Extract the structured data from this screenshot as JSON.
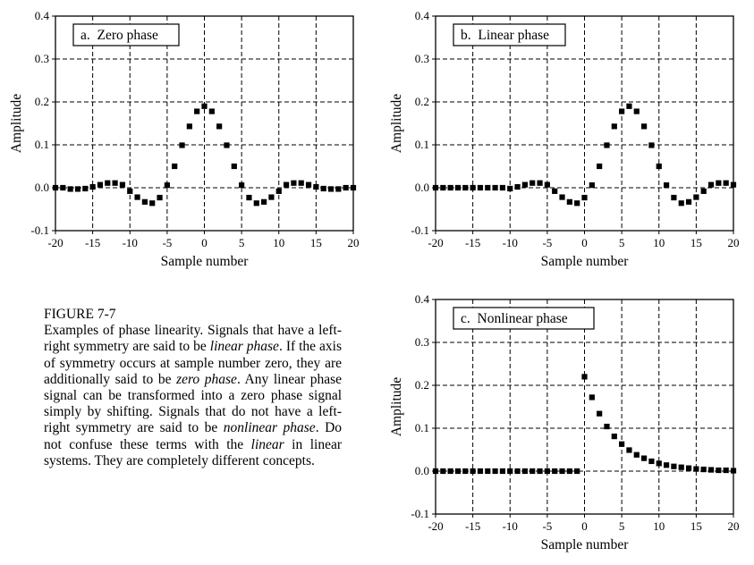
{
  "figure": {
    "label": "FIGURE 7-7",
    "caption": [
      {
        "t": "Examples of phase linearity.  Signals that have a left-right symmetry are said to be "
      },
      {
        "t": "linear phase",
        "i": true
      },
      {
        "t": ".  If the axis of symmetry occurs at sample number zero, they are additionally said to be "
      },
      {
        "t": "zero phase",
        "i": true
      },
      {
        "t": ".  Any linear phase signal can be transformed into a zero phase signal simply by shifting.  Signals that do not have a left-right symmetry are said to be "
      },
      {
        "t": "nonlinear phase",
        "i": true
      },
      {
        "t": ".  Do not confuse these terms with the "
      },
      {
        "t": "linear",
        "i": true
      },
      {
        "t": " in linear systems.  They are completely different concepts."
      }
    ]
  },
  "chart_data": [
    {
      "type": "scatter",
      "title": "a.  Zero phase",
      "xlabel": "Sample number",
      "ylabel": "Amplitude",
      "xlim": [
        -20,
        20
      ],
      "ylim": [
        -0.1,
        0.4
      ],
      "xticks": [
        -20,
        -15,
        -10,
        -5,
        0,
        5,
        10,
        15,
        20
      ],
      "yticks": [
        -0.1,
        0.0,
        0.1,
        0.2,
        0.3,
        0.4
      ],
      "ytick_labels": [
        "-0.1",
        "0.0",
        "0.1",
        "0.2",
        "0.3",
        "0.4"
      ],
      "grid": true,
      "marker": "square",
      "x": [
        -20,
        -19,
        -18,
        -17,
        -16,
        -15,
        -14,
        -13,
        -12,
        -11,
        -10,
        -9,
        -8,
        -7,
        -6,
        -5,
        -4,
        -3,
        -2,
        -1,
        0,
        1,
        2,
        3,
        4,
        5,
        6,
        7,
        8,
        9,
        10,
        11,
        12,
        13,
        14,
        15,
        16,
        17,
        18,
        19,
        20
      ],
      "y": [
        0.0,
        0.0,
        -0.003,
        -0.003,
        -0.002,
        0.002,
        0.007,
        0.011,
        0.011,
        0.007,
        -0.008,
        -0.022,
        -0.033,
        -0.036,
        -0.023,
        0.006,
        0.05,
        0.099,
        0.143,
        0.178,
        0.19,
        0.178,
        0.143,
        0.099,
        0.05,
        0.006,
        -0.023,
        -0.036,
        -0.033,
        -0.022,
        -0.008,
        0.007,
        0.011,
        0.011,
        0.007,
        0.002,
        -0.002,
        -0.003,
        -0.003,
        0.0,
        0.0
      ]
    },
    {
      "type": "scatter",
      "title": "b.  Linear phase",
      "xlabel": "Sample number",
      "ylabel": "Amplitude",
      "xlim": [
        -20,
        20
      ],
      "ylim": [
        -0.1,
        0.4
      ],
      "xticks": [
        -20,
        -15,
        -10,
        -5,
        0,
        5,
        10,
        15,
        20
      ],
      "yticks": [
        -0.1,
        0.0,
        0.1,
        0.2,
        0.3,
        0.4
      ],
      "ytick_labels": [
        "-0.1",
        "0.0",
        "0.1",
        "0.2",
        "0.3",
        "0.4"
      ],
      "grid": true,
      "marker": "square",
      "x": [
        -20,
        -19,
        -18,
        -17,
        -16,
        -15,
        -14,
        -13,
        -12,
        -11,
        -10,
        -9,
        -8,
        -7,
        -6,
        -5,
        -4,
        -3,
        -2,
        -1,
        0,
        1,
        2,
        3,
        4,
        5,
        6,
        7,
        8,
        9,
        10,
        11,
        12,
        13,
        14,
        15,
        16,
        17,
        18,
        19,
        20
      ],
      "y": [
        0.0,
        0.0,
        0.0,
        0.0,
        0.0,
        0.0,
        0.0,
        0.0,
        0.0,
        0.0,
        -0.002,
        0.002,
        0.007,
        0.011,
        0.011,
        0.007,
        -0.008,
        -0.022,
        -0.033,
        -0.036,
        -0.023,
        0.006,
        0.05,
        0.099,
        0.143,
        0.178,
        0.19,
        0.178,
        0.143,
        0.099,
        0.05,
        0.006,
        -0.023,
        -0.036,
        -0.033,
        -0.022,
        -0.008,
        0.007,
        0.011,
        0.011,
        0.007
      ]
    },
    {
      "type": "scatter",
      "title": "c.  Nonlinear phase",
      "xlabel": "Sample number",
      "ylabel": "Amplitude",
      "xlim": [
        -20,
        20
      ],
      "ylim": [
        -0.1,
        0.4
      ],
      "xticks": [
        -20,
        -15,
        -10,
        -5,
        0,
        5,
        10,
        15,
        20
      ],
      "yticks": [
        -0.1,
        0.0,
        0.1,
        0.2,
        0.3,
        0.4
      ],
      "ytick_labels": [
        "-0.1",
        "0.0",
        "0.1",
        "0.2",
        "0.3",
        "0.4"
      ],
      "grid": true,
      "marker": "square",
      "x": [
        -20,
        -19,
        -18,
        -17,
        -16,
        -15,
        -14,
        -13,
        -12,
        -11,
        -10,
        -9,
        -8,
        -7,
        -6,
        -5,
        -4,
        -3,
        -2,
        -1,
        0,
        1,
        2,
        3,
        4,
        5,
        6,
        7,
        8,
        9,
        10,
        11,
        12,
        13,
        14,
        15,
        16,
        17,
        18,
        19,
        20
      ],
      "y": [
        0.0,
        0.0,
        0.0,
        0.0,
        0.0,
        0.0,
        0.0,
        0.0,
        0.0,
        0.0,
        0.0,
        0.0,
        0.0,
        0.0,
        0.0,
        0.0,
        0.0,
        0.0,
        0.0,
        0.0,
        0.22,
        0.172,
        0.134,
        0.104,
        0.081,
        0.063,
        0.049,
        0.038,
        0.03,
        0.023,
        0.018,
        0.014,
        0.011,
        0.009,
        0.007,
        0.005,
        0.004,
        0.003,
        0.002,
        0.002,
        0.001
      ]
    }
  ]
}
